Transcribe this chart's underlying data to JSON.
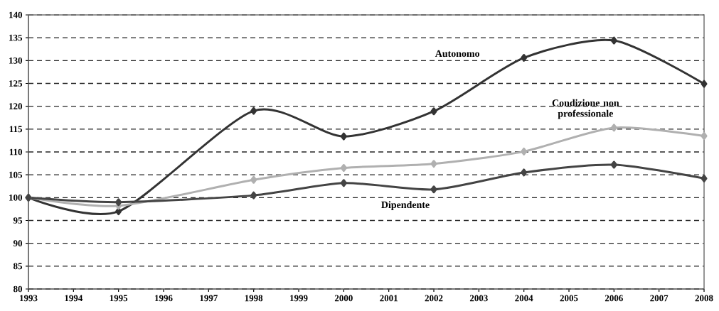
{
  "chart_data": {
    "type": "line",
    "x": [
      1993,
      1995,
      1998,
      2000,
      2002,
      2004,
      2006,
      2008
    ],
    "series": [
      {
        "name": "Autonomo",
        "color": "#333333",
        "values": [
          100,
          97,
          119,
          113.4,
          118.9,
          130.6,
          134.4,
          124.9
        ]
      },
      {
        "name": "Condizione non professionale",
        "color": "#b0b0b0",
        "values": [
          100,
          98.2,
          103.9,
          106.5,
          107.4,
          110.1,
          115.3,
          113.5
        ]
      },
      {
        "name": "Dipendente",
        "color": "#444444",
        "values": [
          100,
          99,
          100.5,
          103.2,
          101.8,
          105.5,
          107.2,
          104.2
        ]
      }
    ],
    "xlim": [
      1993,
      2008
    ],
    "ylim": [
      80,
      140
    ],
    "xticks": [
      1993,
      1994,
      1995,
      1996,
      1997,
      1998,
      1999,
      2000,
      2001,
      2002,
      2003,
      2004,
      2005,
      2006,
      2007,
      2008
    ],
    "yticks": [
      80,
      85,
      90,
      95,
      100,
      105,
      110,
      115,
      120,
      125,
      130,
      135,
      140
    ],
    "grid": "y",
    "marker": "diamond",
    "line_style": "solid"
  }
}
